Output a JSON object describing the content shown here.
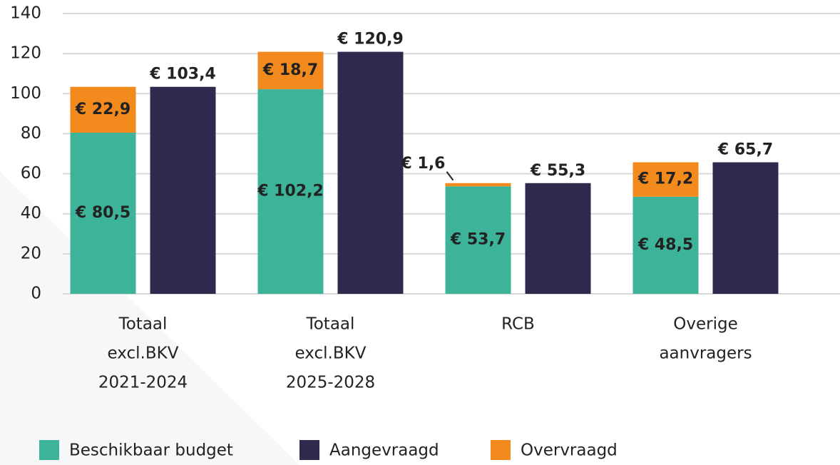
{
  "chart_data": {
    "type": "bar",
    "categories": [
      [
        "Totaal",
        "excl.BKV",
        "2021-2024"
      ],
      [
        "Totaal",
        "excl.BKV",
        "2025-2028"
      ],
      [
        "RCB"
      ],
      [
        "Overige",
        "aanvragers"
      ]
    ],
    "series": [
      {
        "name": "Beschikbaar budget",
        "color": "#3db39a",
        "stack": 0,
        "values": [
          80.5,
          102.2,
          53.7,
          48.5
        ],
        "value_labels": [
          "€ 80,5",
          "€ 102,2",
          "€ 53,7",
          "€ 48,5"
        ]
      },
      {
        "name": "Aangevraagd",
        "color": "#2e2a4e",
        "stack": 1,
        "values": [
          103.4,
          120.9,
          55.3,
          65.7
        ],
        "value_labels": [
          "€ 103,4",
          "€ 120,9",
          "€ 55,3",
          "€ 65,7"
        ]
      },
      {
        "name": "Overvraagd",
        "color": "#f28a1e",
        "stack": 0,
        "values": [
          22.9,
          18.7,
          1.6,
          17.2
        ],
        "value_labels": [
          "€ 22,9",
          "€ 18,7",
          "€ 1,6",
          "€ 17,2"
        ]
      }
    ],
    "ylim": [
      0,
      140
    ],
    "yticks": [
      0,
      20,
      40,
      60,
      80,
      100,
      120,
      140
    ],
    "grid": true
  }
}
